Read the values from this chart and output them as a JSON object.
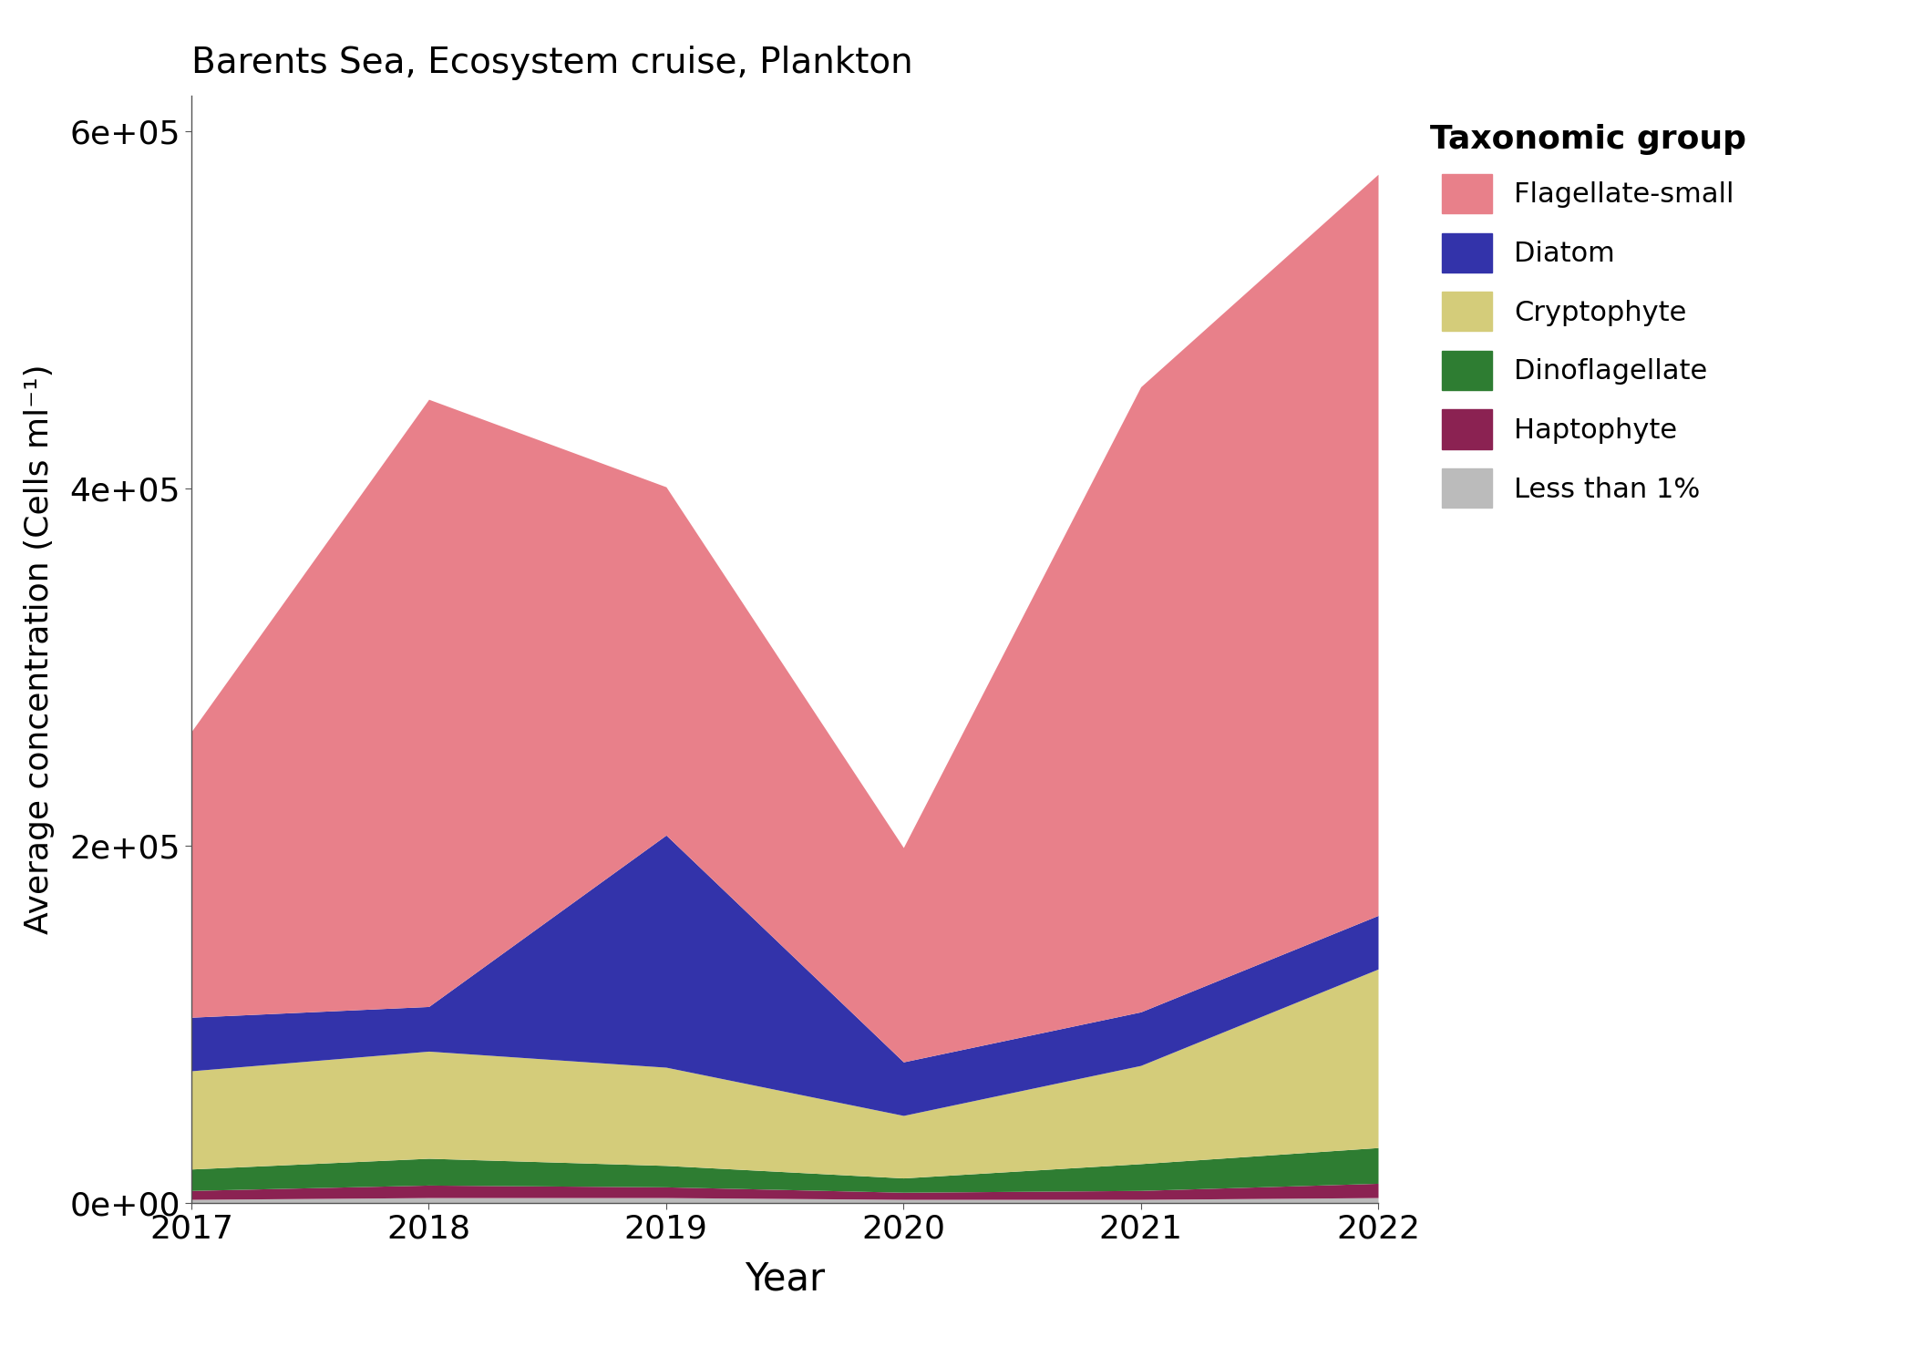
{
  "title": "Barents Sea, Ecosystem cruise, Plankton",
  "xlabel": "Year",
  "ylabel": "Average concentration (Cells ml⁻¹)",
  "years": [
    2017,
    2018,
    2019,
    2020,
    2021,
    2022
  ],
  "series": {
    "Less than 1%": [
      2000,
      3000,
      3000,
      2000,
      2000,
      3000
    ],
    "Haptophyte": [
      5000,
      7000,
      6000,
      4000,
      5000,
      8000
    ],
    "Dinoflagellate": [
      12000,
      15000,
      12000,
      8000,
      15000,
      20000
    ],
    "Cryptophyte": [
      55000,
      60000,
      55000,
      35000,
      55000,
      100000
    ],
    "Diatom": [
      30000,
      25000,
      130000,
      30000,
      30000,
      30000
    ],
    "Flagellate-small": [
      160000,
      340000,
      195000,
      120000,
      350000,
      415000
    ]
  },
  "colors": {
    "Flagellate-small": "#E8808A",
    "Diatom": "#3333AA",
    "Cryptophyte": "#D4CC7A",
    "Dinoflagellate": "#2E7D32",
    "Haptophyte": "#8B2252",
    "Less than 1%": "#BBBBBB"
  },
  "legend_title": "Taxonomic group",
  "legend_order": [
    "Flagellate-small",
    "Diatom",
    "Cryptophyte",
    "Dinoflagellate",
    "Haptophyte",
    "Less than 1%"
  ],
  "stack_order": [
    "Less than 1%",
    "Haptophyte",
    "Dinoflagellate",
    "Cryptophyte",
    "Diatom",
    "Flagellate-small"
  ],
  "ylim": [
    0,
    620000
  ],
  "yticks": [
    0,
    200000,
    400000,
    600000
  ],
  "ytick_labels": [
    "0e+00",
    "2e+05",
    "4e+05",
    "6e+05"
  ],
  "figsize": [
    21.0,
    15.0
  ],
  "dpi": 100
}
